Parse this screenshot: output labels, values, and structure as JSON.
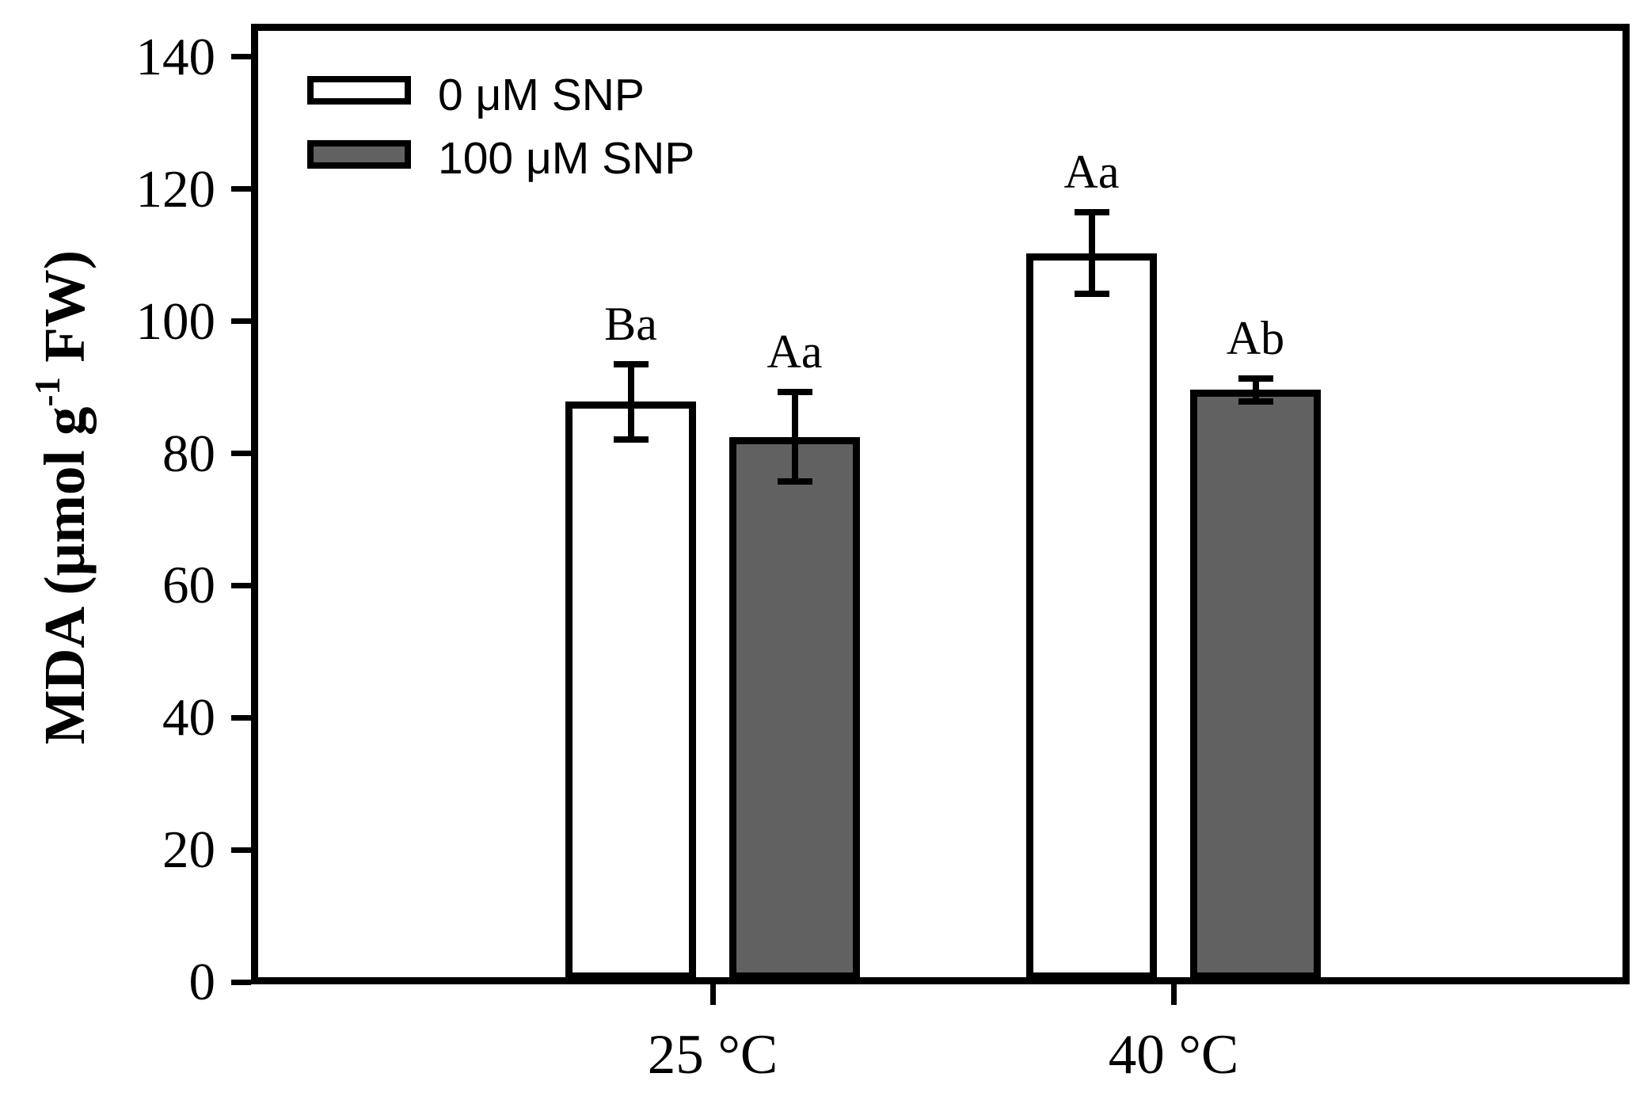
{
  "chart_data": {
    "type": "bar",
    "title": "",
    "categories": [
      "25 °C",
      "40 °C"
    ],
    "series": [
      {
        "name": "0 μM SNP",
        "fill": "#ffffff",
        "values": [
          87.8,
          110.3
        ],
        "errors": [
          5.7,
          6.2
        ],
        "labels": [
          "Ba",
          "Aa"
        ]
      },
      {
        "name": "100 μM SNP",
        "fill": "#616161",
        "values": [
          82.5,
          89.6
        ],
        "errors": [
          6.8,
          1.7
        ],
        "labels": [
          "Aa",
          "Ab"
        ]
      }
    ],
    "xlabel": "",
    "ylabel": "MDA (μmol g-1 FW)",
    "ylabel_main": "MDA (μmol g",
    "ylabel_sup": "-1",
    "ylabel_end": " FW)",
    "yticks": [
      0,
      20,
      40,
      60,
      80,
      100,
      120,
      140
    ],
    "ylim": [
      0,
      145
    ],
    "grid": false,
    "legend_position": "top-left",
    "bar_edge_color": "#000000",
    "background_color": "#ffffff"
  }
}
